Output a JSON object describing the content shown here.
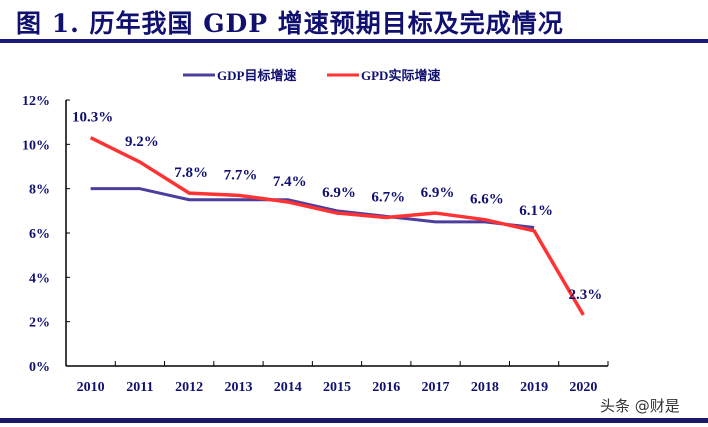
{
  "title": "图 1. 历年我国 GDP 增速预期目标及完成情况",
  "watermark": "头条 @财是",
  "colors": {
    "target": "#4b3f9e",
    "actual": "#ff3333",
    "text": "#101070"
  },
  "chart_data": {
    "type": "line",
    "title": "图 1. 历年我国 GDP 增速预期目标及完成情况",
    "categories": [
      "2010",
      "2011",
      "2012",
      "2013",
      "2014",
      "2015",
      "2016",
      "2017",
      "2018",
      "2019",
      "2020"
    ],
    "series": [
      {
        "name": "GDP目标增速",
        "values": [
          8.0,
          8.0,
          7.5,
          7.5,
          7.5,
          7.0,
          6.75,
          6.5,
          6.5,
          6.25,
          null
        ]
      },
      {
        "name": "GPD实际增速",
        "values": [
          10.3,
          9.2,
          7.8,
          7.7,
          7.4,
          6.9,
          6.7,
          6.9,
          6.6,
          6.1,
          2.3
        ]
      }
    ],
    "data_labels": [
      "10.3%",
      "9.2%",
      "7.8%",
      "7.7%",
      "7.4%",
      "6.9%",
      "6.7%",
      "6.9%",
      "6.6%",
      "6.1%",
      "2.3%"
    ],
    "y_ticks": [
      "0%",
      "2%",
      "4%",
      "6%",
      "8%",
      "10%",
      "12%"
    ],
    "ylim": [
      0,
      12
    ],
    "xlabel": "",
    "ylabel": "",
    "grid": false,
    "legend": "top-center"
  }
}
